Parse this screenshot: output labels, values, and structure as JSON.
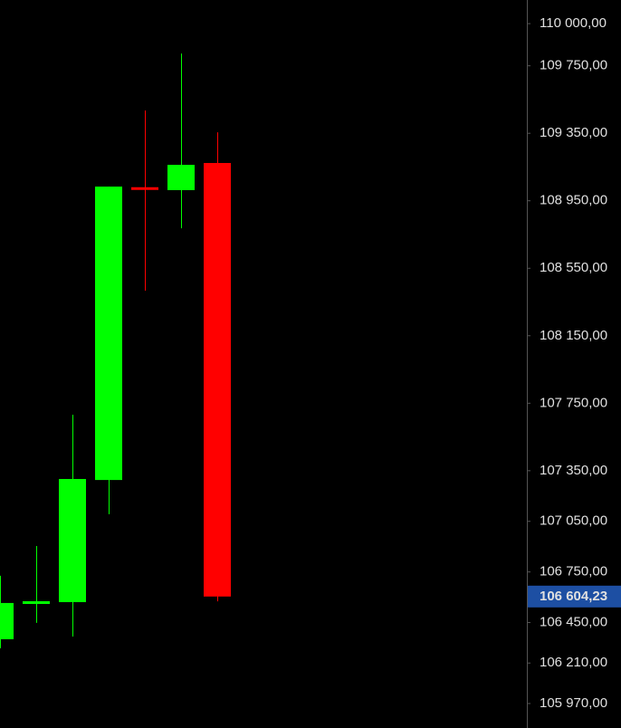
{
  "chart_data": {
    "type": "candlestick",
    "up_color": "#00ff00",
    "down_color": "#ff0000",
    "candles": [
      {
        "open": 106351,
        "high": 106727,
        "low": 106297,
        "close": 106566
      },
      {
        "open": 106571,
        "high": 106904,
        "low": 106448,
        "close": 106571
      },
      {
        "open": 106571,
        "high": 107682,
        "low": 106367,
        "close": 107301
      },
      {
        "open": 107295,
        "high": 109034,
        "low": 107092,
        "close": 109034
      },
      {
        "open": 109025,
        "high": 109485,
        "low": 108417,
        "close": 109018
      },
      {
        "open": 109013,
        "high": 109823,
        "low": 108787,
        "close": 109163
      },
      {
        "open": 109174,
        "high": 109356,
        "low": 106576,
        "close": 106604.23
      }
    ],
    "ylim": [
      105825,
      110140
    ],
    "yticks": [
      {
        "value": 110000,
        "label": "110 000,00"
      },
      {
        "value": 109750,
        "label": "109 750,00"
      },
      {
        "value": 109350,
        "label": "109 350,00"
      },
      {
        "value": 108950,
        "label": "108 950,00"
      },
      {
        "value": 108550,
        "label": "108 550,00"
      },
      {
        "value": 108150,
        "label": "108 150,00"
      },
      {
        "value": 107750,
        "label": "107 750,00"
      },
      {
        "value": 107350,
        "label": "107 350,00"
      },
      {
        "value": 107050,
        "label": "107 050,00"
      },
      {
        "value": 106750,
        "label": "106 750,00"
      },
      {
        "value": 106450,
        "label": "106 450,00"
      },
      {
        "value": 106210,
        "label": "106 210,00"
      },
      {
        "value": 105970,
        "label": "105 970,00"
      }
    ],
    "last_price": {
      "value": 106604.23,
      "label": "106 604,23",
      "color": "#1d4fa3"
    }
  }
}
